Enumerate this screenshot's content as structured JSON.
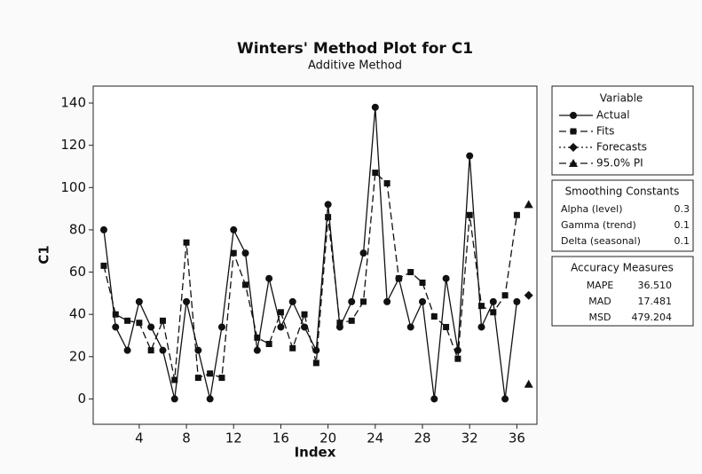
{
  "chart_data": {
    "type": "line",
    "title": "Winters' Method Plot for C1",
    "subtitle": "Additive Method",
    "x_label": "Index",
    "y_label": "C1",
    "x": [
      1,
      2,
      3,
      4,
      5,
      6,
      7,
      8,
      9,
      10,
      11,
      12,
      13,
      14,
      15,
      16,
      17,
      18,
      19,
      20,
      21,
      22,
      23,
      24,
      25,
      26,
      27,
      28,
      29,
      30,
      31,
      32,
      33,
      34,
      35,
      36,
      37
    ],
    "xlim": [
      0.1,
      37.7
    ],
    "xticks": [
      4,
      8,
      12,
      16,
      20,
      24,
      28,
      32,
      36
    ],
    "ylim": [
      -12,
      148
    ],
    "yticks": [
      0,
      20,
      40,
      60,
      80,
      100,
      120,
      140
    ],
    "legend_title": "Variable",
    "legend_position": "right",
    "series": [
      {
        "name": "Actual",
        "color": "#111111",
        "marker": "circle",
        "dash": "solid",
        "values": [
          80,
          34,
          23,
          46,
          34,
          23,
          0,
          46,
          23,
          0,
          34,
          80,
          69,
          23,
          57,
          34,
          46,
          34,
          23,
          92,
          34,
          46,
          69,
          138,
          46,
          57,
          34,
          46,
          0,
          57,
          23,
          115,
          34,
          46,
          0,
          46,
          null
        ]
      },
      {
        "name": "Fits",
        "color": "#111111",
        "marker": "square",
        "dash": "dashed",
        "values": [
          63,
          40,
          37,
          36,
          23,
          37,
          9,
          74,
          10,
          12,
          10,
          69,
          54,
          29,
          26,
          41,
          24,
          40,
          17,
          86,
          36,
          37,
          46,
          107,
          102,
          57,
          60,
          55,
          39,
          34,
          19,
          87,
          44,
          41,
          49,
          87,
          null
        ]
      },
      {
        "name": "Forecasts",
        "color": "#111111",
        "marker": "diamond",
        "dash": "dotted",
        "values": [
          null,
          null,
          null,
          null,
          null,
          null,
          null,
          null,
          null,
          null,
          null,
          null,
          null,
          null,
          null,
          null,
          null,
          null,
          null,
          null,
          null,
          null,
          null,
          null,
          null,
          null,
          null,
          null,
          null,
          null,
          null,
          null,
          null,
          null,
          null,
          null,
          49
        ]
      },
      {
        "name": "95.0% PI",
        "color": "#111111",
        "marker": "triangle",
        "dash": "dashed",
        "values": [
          null,
          null,
          null,
          null,
          null,
          null,
          null,
          null,
          null,
          null,
          null,
          null,
          null,
          null,
          null,
          null,
          null,
          null,
          null,
          null,
          null,
          null,
          null,
          null,
          null,
          null,
          null,
          null,
          null,
          null,
          null,
          null,
          null,
          null,
          null,
          null,
          92
        ]
      },
      {
        "name": "95.0% PI",
        "color": "#111111",
        "marker": "triangle",
        "dash": "dashed",
        "values": [
          null,
          null,
          null,
          null,
          null,
          null,
          null,
          null,
          null,
          null,
          null,
          null,
          null,
          null,
          null,
          null,
          null,
          null,
          null,
          null,
          null,
          null,
          null,
          null,
          null,
          null,
          null,
          null,
          null,
          null,
          null,
          null,
          null,
          null,
          null,
          null,
          7
        ]
      }
    ],
    "smoothing_constants": {
      "title": "Smoothing Constants",
      "rows": [
        [
          "Alpha (level)",
          "0.3"
        ],
        [
          "Gamma (trend)",
          "0.1"
        ],
        [
          "Delta (seasonal)",
          "0.1"
        ]
      ]
    },
    "accuracy_measures": {
      "title": "Accuracy Measures",
      "rows": [
        [
          "MAPE",
          "36.510"
        ],
        [
          "MAD",
          "17.481"
        ],
        [
          "MSD",
          "479.204"
        ]
      ]
    }
  }
}
